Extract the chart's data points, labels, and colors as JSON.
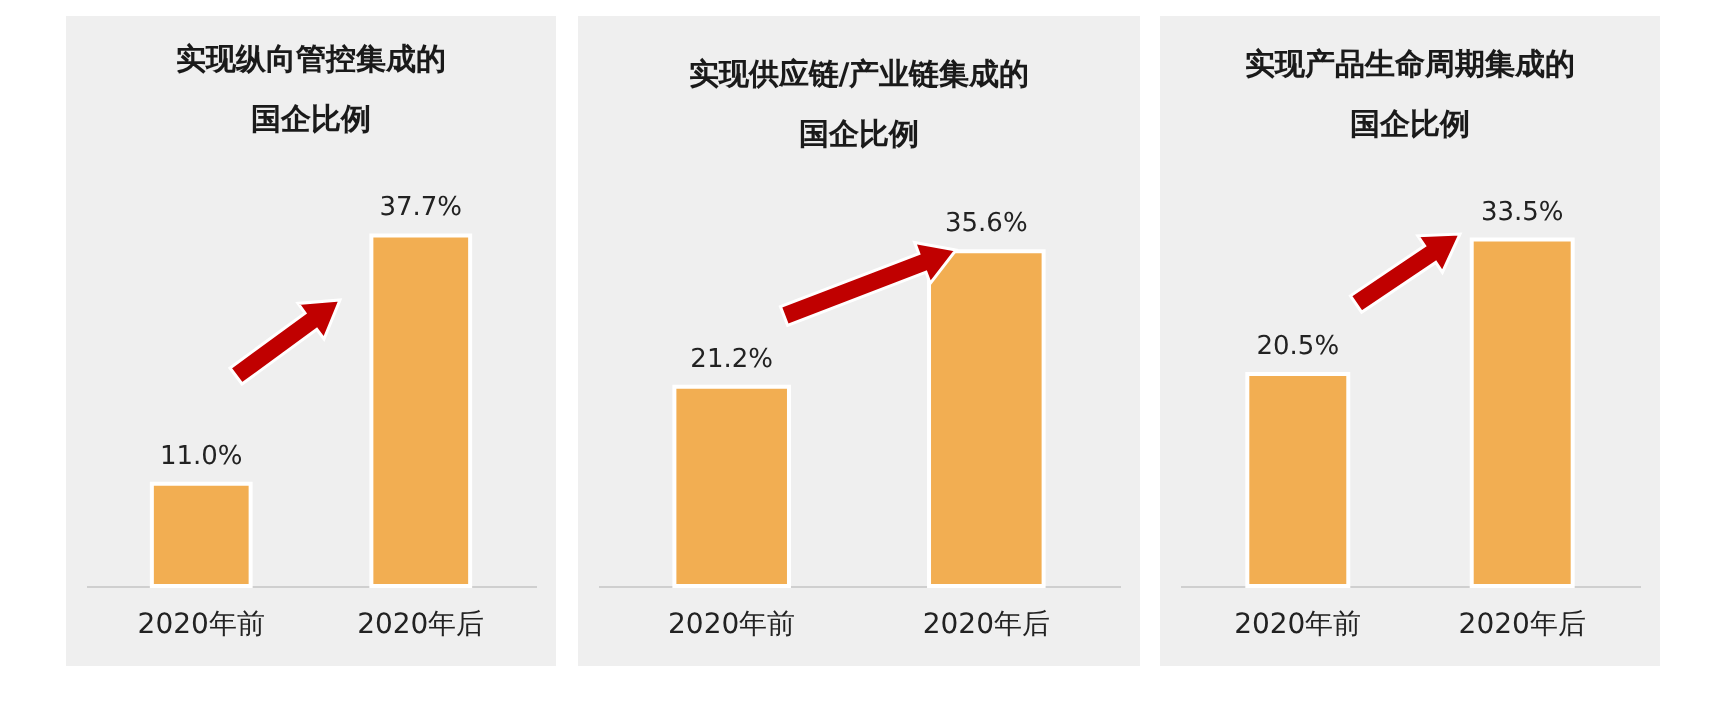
{
  "chart_data": [
    {
      "type": "bar",
      "title": "实现纵向管控集成的国企比例",
      "categories": [
        "2020年前",
        "2020年后"
      ],
      "values": [
        11.0,
        37.7
      ],
      "value_labels": [
        "11.0%",
        "37.7%"
      ],
      "color": "#f2ae52"
    },
    {
      "type": "bar",
      "title": "实现供应链/产业链集成的国企比例",
      "categories": [
        "2020年前",
        "2020年后"
      ],
      "values": [
        21.2,
        35.6
      ],
      "value_labels": [
        "21.2%",
        "35.6%"
      ],
      "color": "#f2ae52"
    },
    {
      "type": "bar",
      "title": "实现产品生命周期集成的国企比例",
      "categories": [
        "2020年前",
        "2020年后"
      ],
      "values": [
        20.5,
        33.5
      ],
      "value_labels": [
        "20.5%",
        "33.5%"
      ],
      "color": "#f2ae52"
    }
  ]
}
